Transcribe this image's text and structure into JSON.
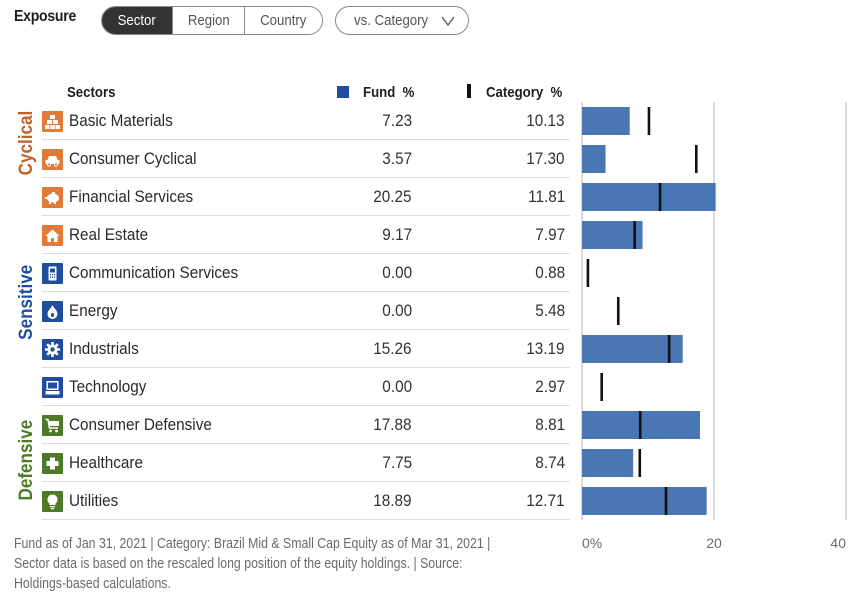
{
  "header": {
    "title": "Exposure",
    "tabs": [
      {
        "label": "Sector",
        "active": true
      },
      {
        "label": "Region",
        "active": false
      },
      {
        "label": "Country",
        "active": false
      }
    ],
    "comparison_dropdown": {
      "selected": "vs. Category",
      "icon": "chevron-down-icon"
    }
  },
  "table": {
    "col_sectors": "Sectors",
    "col_fund": "Fund  %",
    "col_category": "Category  %",
    "groups": [
      {
        "label": "Cyclical",
        "color": "#c0622a"
      },
      {
        "label": "Sensitive",
        "color": "#1f4e9c"
      },
      {
        "label": "Defensive",
        "color": "#4e7a27"
      }
    ],
    "rows": [
      {
        "name": "Basic Materials",
        "fund": "7.23",
        "category": "10.13",
        "group": "Cyclical",
        "icon": "gold-bars-icon"
      },
      {
        "name": "Consumer Cyclical",
        "fund": "3.57",
        "category": "17.30",
        "group": "Cyclical",
        "icon": "car-icon"
      },
      {
        "name": "Financial Services",
        "fund": "20.25",
        "category": "11.81",
        "group": "Cyclical",
        "icon": "piggy-bank-icon"
      },
      {
        "name": "Real Estate",
        "fund": "9.17",
        "category": "7.97",
        "group": "Cyclical",
        "icon": "house-icon"
      },
      {
        "name": "Communication Services",
        "fund": "0.00",
        "category": "0.88",
        "group": "Sensitive",
        "icon": "phone-icon"
      },
      {
        "name": "Energy",
        "fund": "0.00",
        "category": "5.48",
        "group": "Sensitive",
        "icon": "flame-icon"
      },
      {
        "name": "Industrials",
        "fund": "15.26",
        "category": "13.19",
        "group": "Sensitive",
        "icon": "gear-icon"
      },
      {
        "name": "Technology",
        "fund": "0.00",
        "category": "2.97",
        "group": "Sensitive",
        "icon": "computer-icon"
      },
      {
        "name": "Consumer Defensive",
        "fund": "17.88",
        "category": "8.81",
        "group": "Defensive",
        "icon": "cart-icon"
      },
      {
        "name": "Healthcare",
        "fund": "7.75",
        "category": "8.74",
        "group": "Defensive",
        "icon": "medical-cross-icon"
      },
      {
        "name": "Utilities",
        "fund": "18.89",
        "category": "12.71",
        "group": "Defensive",
        "icon": "lightbulb-icon"
      }
    ]
  },
  "footer": {
    "lines": [
      "Fund as of Jan 31, 2021 | Category: Brazil Mid & Small Cap Equity as of Mar 31, 2021 |",
      "Sector data is based on the rescaled long position of the equity holdings. | Source:",
      "Holdings-based calculations."
    ]
  },
  "chart_data": {
    "type": "bar",
    "orientation": "horizontal",
    "categories": [
      "Basic Materials",
      "Consumer Cyclical",
      "Financial Services",
      "Real Estate",
      "Communication Services",
      "Energy",
      "Industrials",
      "Technology",
      "Consumer Defensive",
      "Healthcare",
      "Utilities"
    ],
    "series": [
      {
        "name": "Fund %",
        "mark": "bar",
        "color": "#4a76b4",
        "values": [
          7.23,
          3.57,
          20.25,
          9.17,
          0.0,
          0.0,
          15.26,
          0.0,
          17.88,
          7.75,
          18.89
        ]
      },
      {
        "name": "Category %",
        "mark": "tick",
        "color": "#111111",
        "values": [
          10.13,
          17.3,
          11.81,
          7.97,
          0.88,
          5.48,
          13.19,
          2.97,
          8.81,
          8.74,
          12.71
        ]
      }
    ],
    "xlim": [
      0,
      40
    ],
    "xticks": [
      "0%",
      "20",
      "40"
    ],
    "xtick_values": [
      0,
      20,
      40
    ],
    "grid": true,
    "legend": "top"
  }
}
